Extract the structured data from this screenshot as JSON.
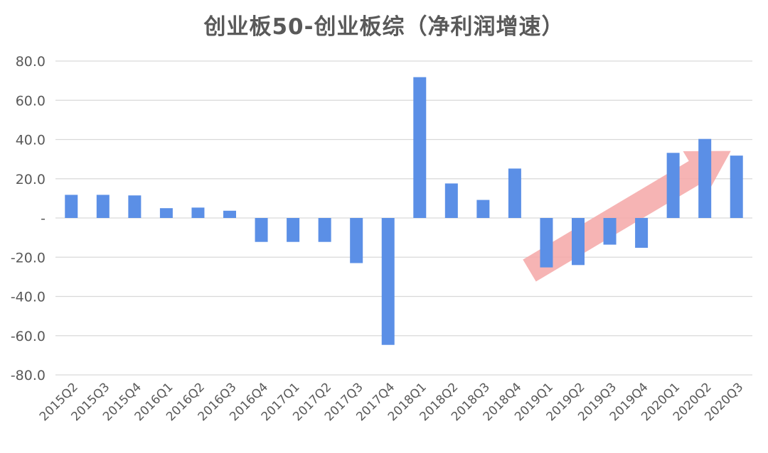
{
  "chart_data": {
    "type": "bar",
    "title": "创业板50-创业板综（净利润增速）",
    "xlabel": "",
    "ylabel": "",
    "ylim": [
      -80,
      80
    ],
    "yticks": [
      80,
      60,
      40,
      20,
      0,
      -20,
      -40,
      -60,
      -80
    ],
    "ytick_labels": [
      "80.0",
      "60.0",
      "40.0",
      "20.0",
      "-",
      "-20.0",
      "-40.0",
      "-60.0",
      "-80.0"
    ],
    "categories": [
      "2015Q2",
      "2015Q3",
      "2015Q4",
      "2016Q1",
      "2016Q2",
      "2016Q3",
      "2016Q4",
      "2017Q1",
      "2017Q2",
      "2017Q3",
      "2017Q4",
      "2018Q1",
      "2018Q2",
      "2018Q3",
      "2018Q4",
      "2019Q1",
      "2019Q2",
      "2019Q3",
      "2019Q4",
      "2020Q1",
      "2020Q2",
      "2020Q3"
    ],
    "values": [
      11.8,
      11.8,
      11.5,
      5.0,
      5.3,
      3.7,
      -12.2,
      -12.2,
      -12.2,
      -23.0,
      -64.7,
      71.8,
      17.6,
      9.2,
      25.2,
      -25.2,
      -24.0,
      -13.6,
      -15.2,
      33.2,
      40.3,
      31.8
    ],
    "grid": true,
    "legend": "none",
    "bar_color": "#5b8fe6",
    "annotation": {
      "shape": "arrow",
      "color": "#f4a7a7",
      "from_category": "2019Q1",
      "to_category": "2020Q3",
      "from_value": -25,
      "to_value": 32
    }
  }
}
